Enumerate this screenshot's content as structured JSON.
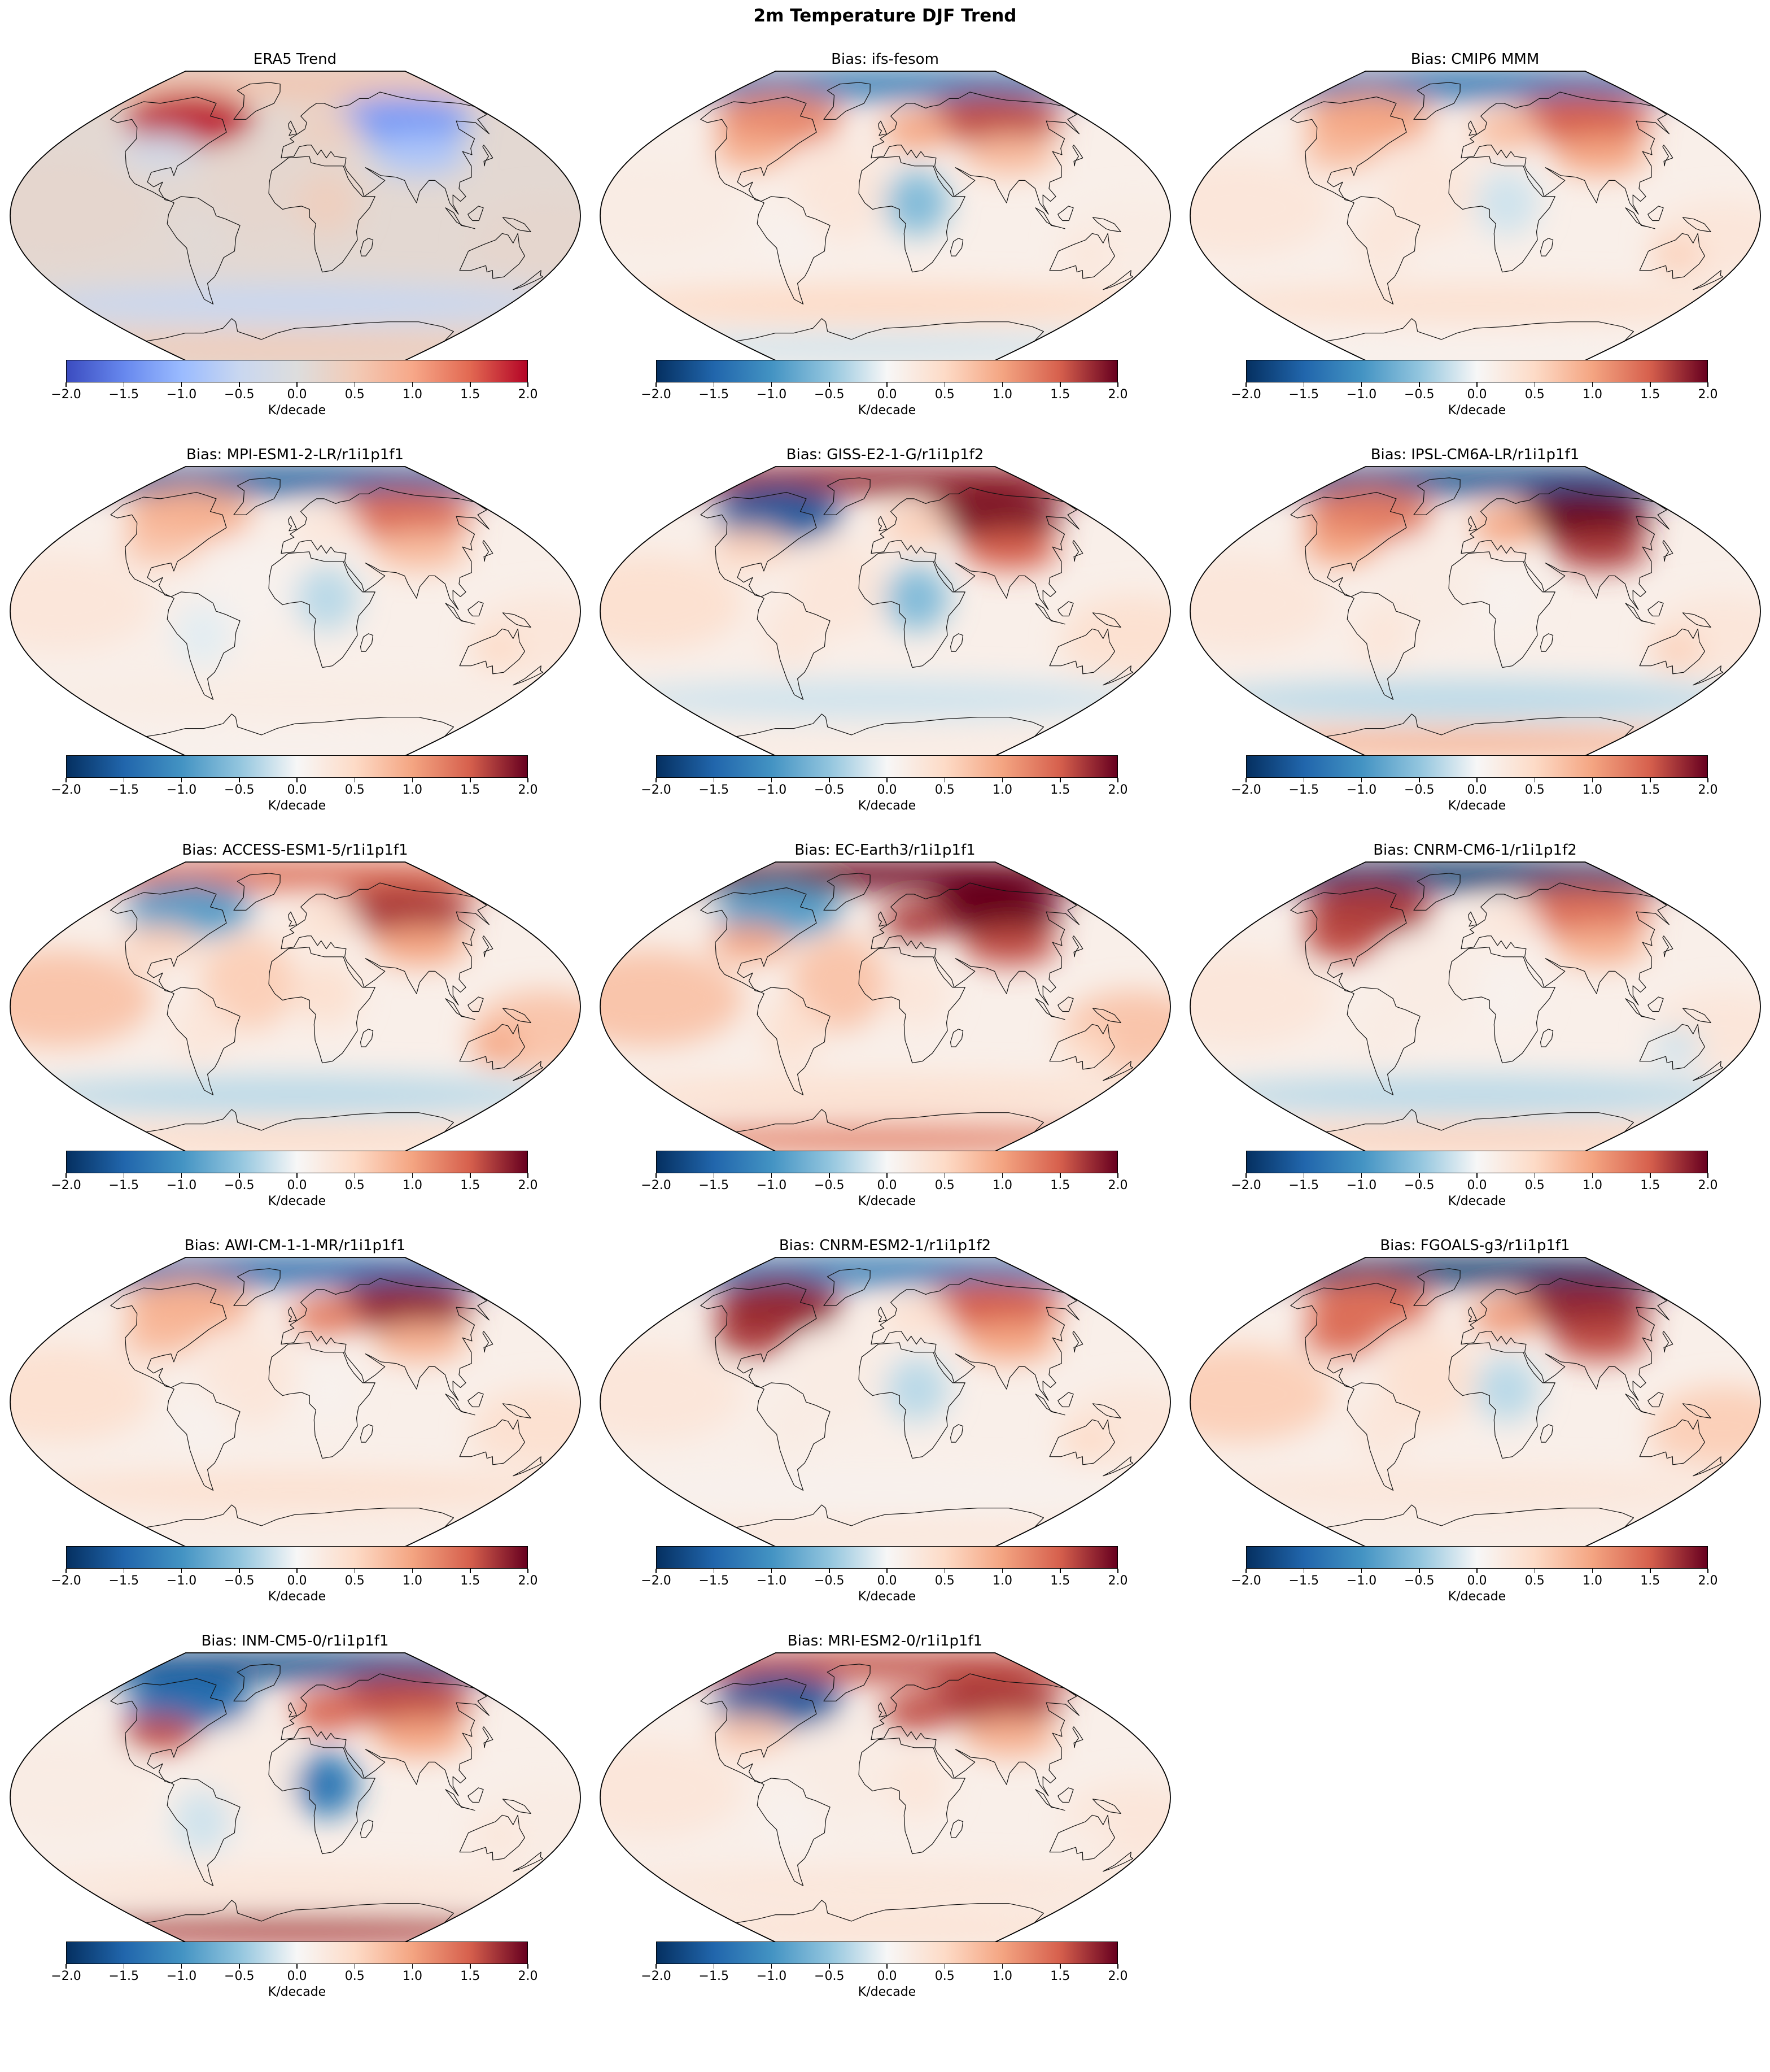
{
  "figure": {
    "title": "2m Temperature DJF Trend"
  },
  "colorbar": {
    "label": "K/decade",
    "ticks": [
      "−2.0",
      "−1.5",
      "−1.0",
      "−0.5",
      "0.0",
      "0.5",
      "1.0",
      "1.5",
      "2.0"
    ],
    "vmin": -2.0,
    "vmax": 2.0,
    "cmaps": {
      "trend": [
        "#3b4cc0",
        "#6788ee",
        "#9abbff",
        "#c9d7f0",
        "#dddddd",
        "#f2cbb7",
        "#f7a889",
        "#e26952",
        "#b40426"
      ],
      "bias": [
        "#053061",
        "#2166ac",
        "#4393c3",
        "#92c5de",
        "#f7f7f7",
        "#fddbc7",
        "#f4a582",
        "#d6604d",
        "#67001f"
      ]
    }
  },
  "map_style": {
    "ocean_color": "#f6eae4",
    "land_outline": "#111111"
  },
  "panels": [
    {
      "title": "ERA5 Trend",
      "cmap": "trend",
      "fields": {
        "arctic": 0.6,
        "canada": 1.9,
        "siberia": -1.3,
        "europe": 0.4,
        "asia": -0.8,
        "africa": 0.4,
        "namerica": -0.3,
        "samerica": 0.1,
        "australia": 0.2,
        "antarctica": 0.5,
        "pacific": 0.2,
        "atlantic": 0.2,
        "southern": -0.5
      }
    },
    {
      "title": "Bias: ifs-fesom",
      "cmap": "bias",
      "fields": {
        "arctic": -1.3,
        "canada": 1.2,
        "siberia": 1.6,
        "europe": 1.0,
        "asia": 0.8,
        "africa": -0.6,
        "namerica": 0.9,
        "samerica": 0.1,
        "australia": 0.3,
        "antarctica": -0.2,
        "pacific": 0.2,
        "atlantic": 0.3,
        "southern": 0.5
      }
    },
    {
      "title": "Bias: CMIP6 MMM",
      "cmap": "bias",
      "fields": {
        "arctic": -1.4,
        "canada": 1.0,
        "siberia": 1.5,
        "europe": 0.8,
        "asia": 1.0,
        "africa": -0.2,
        "namerica": 0.8,
        "samerica": 0.3,
        "australia": 0.6,
        "antarctica": 0.1,
        "pacific": 0.3,
        "atlantic": 0.3,
        "southern": 0.4
      }
    },
    {
      "title": "Bias: MPI-ESM1-2-LR/r1i1p1f1",
      "cmap": "bias",
      "fields": {
        "arctic": -1.6,
        "canada": 0.9,
        "siberia": 1.4,
        "europe": 0.3,
        "asia": 0.8,
        "africa": -0.3,
        "namerica": 0.7,
        "samerica": -0.1,
        "australia": 0.5,
        "antarctica": 0.1,
        "pacific": 0.3,
        "atlantic": 0.1,
        "southern": 0.2
      }
    },
    {
      "title": "Bias: GISS-E2-1-G/r1i1p1f2",
      "cmap": "bias",
      "fields": {
        "arctic": 1.8,
        "canada": -1.6,
        "siberia": 1.9,
        "europe": 0.6,
        "asia": 1.5,
        "africa": -0.6,
        "namerica": 0.6,
        "samerica": 0.3,
        "australia": 0.4,
        "antarctica": 0.2,
        "pacific": 0.4,
        "atlantic": 0.3,
        "southern": -0.2
      }
    },
    {
      "title": "Bias: IPSL-CM6A-LR/r1i1p1f1",
      "cmap": "bias",
      "fields": {
        "arctic": -1.7,
        "canada": 1.3,
        "siberia": 2.0,
        "europe": 1.0,
        "asia": 1.7,
        "africa": 0.1,
        "namerica": 1.0,
        "samerica": 0.3,
        "australia": 0.6,
        "antarctica": 0.9,
        "pacific": 0.3,
        "atlantic": 0.2,
        "southern": -0.3
      }
    },
    {
      "title": "Bias: ACCESS-ESM1-5/r1i1p1f1",
      "cmap": "bias",
      "fields": {
        "arctic": 1.4,
        "canada": -0.9,
        "siberia": 1.7,
        "europe": 0.4,
        "asia": 1.0,
        "africa": 0.4,
        "namerica": 0.6,
        "samerica": 0.3,
        "australia": 1.0,
        "antarctica": 0.5,
        "pacific": 0.7,
        "atlantic": 0.6,
        "southern": -0.3
      }
    },
    {
      "title": "Bias: EC-Earth3/r1i1p1f1",
      "cmap": "bias",
      "fields": {
        "arctic": 2.0,
        "canada": -0.9,
        "siberia": 2.0,
        "europe": 1.7,
        "asia": 1.6,
        "africa": 0.3,
        "namerica": 1.0,
        "samerica": 0.4,
        "australia": 0.5,
        "antarctica": 1.3,
        "pacific": 0.7,
        "atlantic": 0.7,
        "southern": 0.4
      }
    },
    {
      "title": "Bias: CNRM-CM6-1/r1i1p1f2",
      "cmap": "bias",
      "fields": {
        "arctic": -1.9,
        "canada": 1.7,
        "siberia": 1.4,
        "europe": 0.3,
        "asia": 0.9,
        "africa": 0.1,
        "namerica": 1.6,
        "samerica": 0.2,
        "australia": -0.2,
        "antarctica": 0.6,
        "pacific": 0.3,
        "atlantic": 0.2,
        "southern": -0.3
      }
    },
    {
      "title": "Bias: AWI-CM-1-1-MR/r1i1p1f1",
      "cmap": "bias",
      "fields": {
        "arctic": -1.5,
        "canada": 0.9,
        "siberia": 1.8,
        "europe": 1.3,
        "asia": 0.9,
        "africa": 0.1,
        "namerica": 0.8,
        "samerica": 0.1,
        "australia": 0.4,
        "antarctica": 0.2,
        "pacific": 0.4,
        "atlantic": 0.3,
        "southern": 0.4
      }
    },
    {
      "title": "Bias: CNRM-ESM2-1/r1i1p1f2",
      "cmap": "bias",
      "fields": {
        "arctic": -1.3,
        "canada": 1.8,
        "siberia": 1.5,
        "europe": 0.4,
        "asia": 1.0,
        "africa": -0.3,
        "namerica": 1.7,
        "samerica": 0.2,
        "australia": 0.5,
        "antarctica": 0.3,
        "pacific": 0.3,
        "atlantic": 0.2,
        "southern": 0.1
      }
    },
    {
      "title": "Bias: FGOALS-g3/r1i1p1f1",
      "cmap": "bias",
      "fields": {
        "arctic": -1.9,
        "canada": 1.4,
        "siberia": 1.8,
        "europe": 1.1,
        "asia": 1.6,
        "africa": -0.3,
        "namerica": 1.4,
        "samerica": 0.3,
        "australia": 0.6,
        "antarctica": 0.2,
        "pacific": 0.6,
        "atlantic": 0.4,
        "southern": 0.3
      }
    },
    {
      "title": "Bias: INM-CM5-0/r1i1p1f1",
      "cmap": "bias",
      "fields": {
        "arctic": -1.7,
        "canada": -1.4,
        "siberia": 1.6,
        "europe": 1.5,
        "asia": 1.0,
        "africa": -1.3,
        "namerica": 1.6,
        "samerica": -0.2,
        "australia": 0.3,
        "antarctica": 1.7,
        "pacific": 0.2,
        "atlantic": 0.2,
        "southern": 0.3
      }
    },
    {
      "title": "Bias: MRI-ESM2-0/r1i1p1f1",
      "cmap": "bias",
      "fields": {
        "arctic": 1.6,
        "canada": -1.6,
        "siberia": 1.7,
        "europe": 1.6,
        "asia": 0.9,
        "africa": 0.3,
        "namerica": 0.7,
        "samerica": 0.1,
        "australia": 0.2,
        "antarctica": 0.4,
        "pacific": 0.3,
        "atlantic": 0.2,
        "southern": 0.3
      }
    }
  ]
}
